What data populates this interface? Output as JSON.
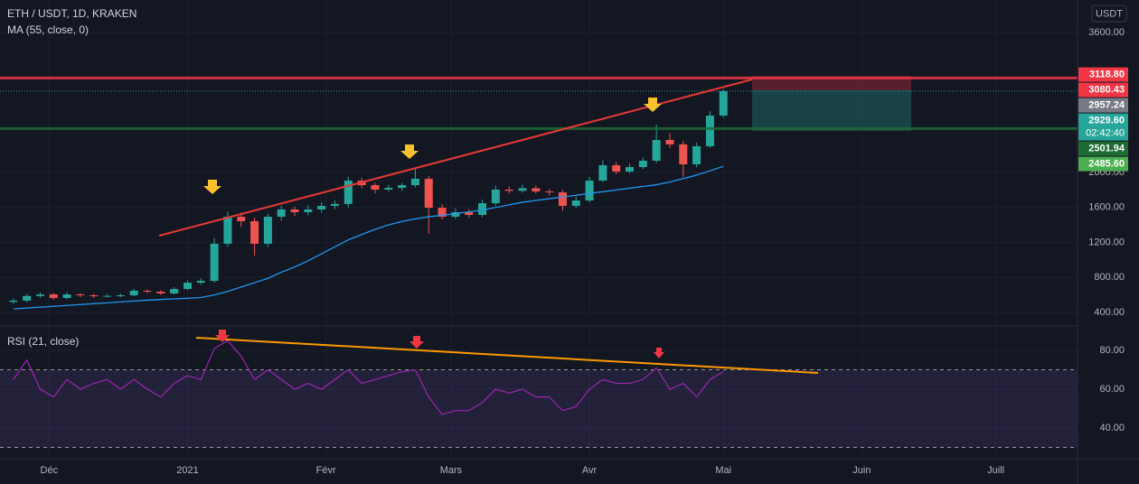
{
  "chart_data": [
    {
      "type": "candlestick",
      "title": "ETH / USDT, 1D, KRAKEN",
      "currency": "USDT",
      "x": [
        3,
        6,
        9,
        12,
        15,
        18,
        21,
        24,
        27,
        30,
        33,
        36,
        39,
        42,
        45,
        48,
        51,
        54,
        57,
        60,
        63,
        66,
        69,
        72,
        75,
        78,
        81,
        84,
        87,
        90,
        93,
        96,
        99,
        102,
        105,
        108,
        111,
        114,
        117,
        120,
        123,
        126,
        129,
        132,
        135,
        138,
        141,
        144,
        147,
        150,
        153,
        156,
        159,
        162
      ],
      "open": [
        520,
        535,
        588,
        606,
        565,
        606,
        596,
        586,
        590,
        596,
        648,
        637,
        617,
        668,
        740,
        761,
        1185,
        1494,
        1443,
        1185,
        1494,
        1577,
        1546,
        1577,
        1618,
        1640,
        1907,
        1855,
        1804,
        1824,
        1855,
        1928,
        1597,
        1494,
        1546,
        1515,
        1649,
        1804,
        1790,
        1820,
        1783,
        1773,
        1618,
        1680,
        1907,
        2083,
        2010,
        2062,
        2134,
        2372,
        2321,
        2093,
        2300,
        2650
      ],
      "high": [
        560,
        610,
        630,
        625,
        630,
        620,
        612,
        610,
        615,
        670,
        665,
        655,
        690,
        765,
        790,
        1250,
        1550,
        1540,
        1480,
        1530,
        1620,
        1610,
        1625,
        1660,
        1680,
        1950,
        1940,
        1880,
        1860,
        1880,
        2040,
        1960,
        1640,
        1590,
        1580,
        1690,
        1850,
        1840,
        1860,
        1850,
        1810,
        1800,
        1720,
        1950,
        2140,
        2120,
        2100,
        2170,
        2550,
        2450,
        2360,
        2340,
        2700,
        2950
      ],
      "low": [
        500,
        520,
        570,
        545,
        550,
        575,
        565,
        570,
        575,
        585,
        620,
        600,
        605,
        655,
        720,
        740,
        1150,
        1380,
        1050,
        1150,
        1450,
        1500,
        1510,
        1540,
        1580,
        1600,
        1820,
        1760,
        1780,
        1790,
        1830,
        1300,
        1460,
        1470,
        1480,
        1490,
        1620,
        1760,
        1770,
        1760,
        1740,
        1560,
        1590,
        1660,
        1890,
        1980,
        1990,
        2040,
        2110,
        2280,
        1950,
        2060,
        2280,
        2630
      ],
      "close": [
        535,
        588,
        606,
        565,
        606,
        596,
        586,
        590,
        596,
        648,
        637,
        617,
        668,
        740,
        761,
        1185,
        1494,
        1443,
        1185,
        1494,
        1577,
        1546,
        1577,
        1618,
        1640,
        1907,
        1855,
        1804,
        1824,
        1855,
        1928,
        1597,
        1494,
        1546,
        1515,
        1649,
        1804,
        1790,
        1820,
        1783,
        1773,
        1618,
        1680,
        1907,
        2083,
        2010,
        2062,
        2134,
        2372,
        2321,
        2093,
        2300,
        2650,
        2929.6
      ],
      "up_color": "#26a69a",
      "down_color": "#ef5350",
      "series": [
        {
          "name": "MA (55, close, 0)",
          "color": "#2196f3",
          "values": [
            440,
            450,
            460,
            470,
            480,
            490,
            500,
            510,
            520,
            530,
            540,
            548,
            555,
            562,
            570,
            600,
            640,
            690,
            740,
            790,
            860,
            920,
            990,
            1070,
            1150,
            1230,
            1290,
            1350,
            1400,
            1440,
            1470,
            1495,
            1510,
            1530,
            1550,
            1570,
            1600,
            1630,
            1660,
            1680,
            1700,
            1720,
            1740,
            1760,
            1780,
            1800,
            1820,
            1840,
            1860,
            1890,
            1930,
            1970,
            2020,
            2070
          ]
        }
      ],
      "ylim": [
        255.5,
        3971.6
      ],
      "yticks": [
        {
          "value": 400,
          "label": "400.00"
        },
        {
          "value": 800,
          "label": "800.00"
        },
        {
          "value": 1200,
          "label": "1200.00"
        },
        {
          "value": 1600,
          "label": "1600.00"
        },
        {
          "value": 2000,
          "label": "2000.00"
        },
        {
          "value": 3600,
          "label": "3600.00"
        }
      ],
      "xlim": [
        0,
        241.3
      ],
      "xticks": [
        {
          "value": 11,
          "label": "Déc"
        },
        {
          "value": 42,
          "label": "2021"
        },
        {
          "value": 73,
          "label": "Févr"
        },
        {
          "value": 101,
          "label": "Mars"
        },
        {
          "value": 132,
          "label": "Avr"
        },
        {
          "value": 162,
          "label": "Mai"
        },
        {
          "value": 193,
          "label": "Juin"
        },
        {
          "value": 223,
          "label": "Juill"
        }
      ],
      "price_labels": [
        {
          "value": 3118.8,
          "label": "3118.80",
          "color": "#f23645"
        },
        {
          "value": 3080.43,
          "label": "3080.43",
          "color": "#f23645",
          "line": "solid"
        },
        {
          "value": 2957.24,
          "label": "2957.24",
          "color": "#787b86"
        },
        {
          "value": 2929.6,
          "label": "2929.60",
          "color": "#26a69a",
          "line": "dotted"
        },
        {
          "value": 2501.94,
          "label": "2501.94",
          "color": "#1e6b35",
          "line": "solid"
        },
        {
          "value": 2485.6,
          "label": "2485.60",
          "color": "#4caf50"
        }
      ],
      "countdown": "02:42:40"
    },
    {
      "type": "line",
      "series": [
        {
          "name": "RSI (21, close)",
          "color": "#9c27b0",
          "values": [
            65,
            75,
            60,
            56,
            65,
            60,
            63,
            65,
            60,
            65,
            60,
            56,
            63,
            67,
            65,
            81,
            85,
            77,
            65,
            70,
            65,
            60,
            63,
            60,
            65,
            70,
            63,
            65,
            67,
            69,
            70,
            56,
            47,
            49,
            49,
            53,
            60,
            58,
            60,
            56,
            56,
            49,
            51,
            60,
            65,
            63,
            63,
            65,
            71,
            60,
            63,
            56,
            65,
            69
          ]
        }
      ],
      "ylim": [
        24.2,
        92.1
      ],
      "yticks": [
        {
          "value": 40,
          "label": "40.00"
        },
        {
          "value": 60,
          "label": "60.00"
        },
        {
          "value": 80,
          "label": "80.00"
        }
      ],
      "bands": [
        30,
        70
      ]
    }
  ]
}
